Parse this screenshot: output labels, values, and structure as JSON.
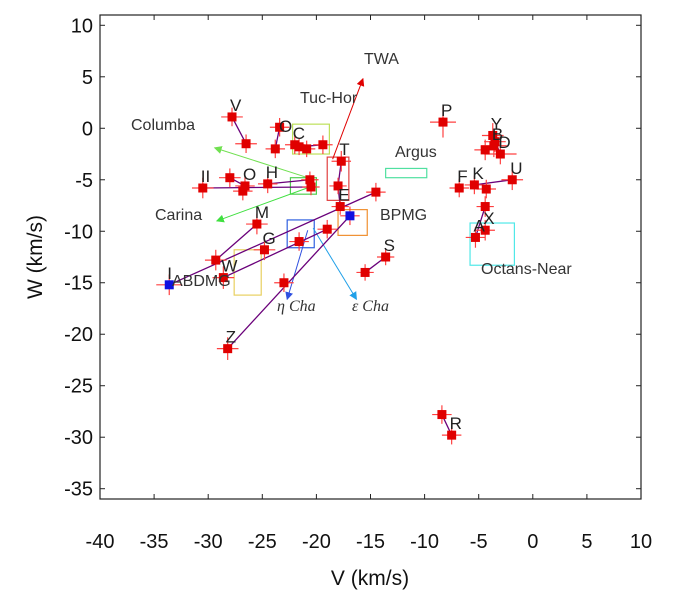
{
  "chart_data": {
    "type": "scatter",
    "xlabel": "V (km/s)",
    "ylabel": "W (km/s)",
    "xlim": [
      -40,
      10
    ],
    "ylim": [
      -36,
      11
    ],
    "xticks": [
      -40,
      -35,
      -30,
      -25,
      -20,
      -15,
      -10,
      -5,
      0,
      5,
      10
    ],
    "yticks": [
      -35,
      -30,
      -25,
      -20,
      -15,
      -10,
      -5,
      0,
      5,
      10
    ],
    "grid": false,
    "colors": {
      "star": "#e00000",
      "errorbar": "#ff4040",
      "mean": "#1010e0",
      "track": "#6a007a"
    },
    "stars": [
      {
        "label": "V",
        "x": -27.8,
        "y": 1.1,
        "xerr": 1.0,
        "yerr": 0.9
      },
      {
        "label": "",
        "x": -26.5,
        "y": -1.5,
        "xerr": 1.0,
        "yerr": 0.9
      },
      {
        "label": "",
        "x": -23.4,
        "y": 0.1,
        "xerr": 0.9,
        "yerr": 0.9
      },
      {
        "label": "",
        "x": -23.8,
        "y": -2.0,
        "xerr": 0.9,
        "yerr": 0.9
      },
      {
        "label": "C",
        "x": -22.0,
        "y": -1.6,
        "xerr": 0.9,
        "yerr": 0.9
      },
      {
        "label": "",
        "x": -21.6,
        "y": -1.8,
        "xerr": 0.8,
        "yerr": 0.8
      },
      {
        "label": "",
        "x": -20.9,
        "y": -2.0,
        "xerr": 0.8,
        "yerr": 0.8
      },
      {
        "label": "",
        "x": -19.4,
        "y": -1.6,
        "xerr": 0.9,
        "yerr": 0.9
      },
      {
        "label": "T",
        "x": -17.7,
        "y": -3.2,
        "xerr": 0.9,
        "yerr": 1.0
      },
      {
        "label": "",
        "x": -18.0,
        "y": -5.6,
        "xerr": 0.8,
        "yerr": 0.8
      },
      {
        "label": "E",
        "x": -17.8,
        "y": -7.6,
        "xerr": 0.8,
        "yerr": 0.8
      },
      {
        "label": "O",
        "x": -26.6,
        "y": -5.6,
        "xerr": 0.9,
        "yerr": 0.9
      },
      {
        "label": "",
        "x": -28.0,
        "y": -4.8,
        "xerr": 1.0,
        "yerr": 0.9
      },
      {
        "label": "",
        "x": -26.8,
        "y": -6.1,
        "xerr": 0.9,
        "yerr": 0.9
      },
      {
        "label": "H",
        "x": -24.5,
        "y": -5.4,
        "xerr": 0.9,
        "yerr": 0.9
      },
      {
        "label": "",
        "x": -20.6,
        "y": -5.0,
        "xerr": 0.8,
        "yerr": 0.8
      },
      {
        "label": "",
        "x": -20.5,
        "y": -5.7,
        "xerr": 0.8,
        "yerr": 0.8
      },
      {
        "label": "",
        "x": -14.5,
        "y": -6.2,
        "xerr": 0.9,
        "yerr": 0.9
      },
      {
        "label": "II",
        "x": -30.5,
        "y": -5.8,
        "xerr": 1.0,
        "yerr": 1.0
      },
      {
        "label": "M",
        "x": -25.5,
        "y": -9.3,
        "xerr": 1.0,
        "yerr": 1.0
      },
      {
        "label": "G",
        "x": -24.8,
        "y": -11.8,
        "xerr": 1.0,
        "yerr": 1.0
      },
      {
        "label": "",
        "x": -21.6,
        "y": -11.0,
        "xerr": 0.9,
        "yerr": 0.9
      },
      {
        "label": "",
        "x": -19.0,
        "y": -9.8,
        "xerr": 0.9,
        "yerr": 0.9
      },
      {
        "label": "",
        "x": -29.3,
        "y": -12.8,
        "xerr": 1.0,
        "yerr": 1.0
      },
      {
        "label": "W",
        "x": -28.6,
        "y": -14.5,
        "xerr": 1.0,
        "yerr": 1.1
      },
      {
        "label": "",
        "x": -23.0,
        "y": -15.0,
        "xerr": 0.9,
        "yerr": 0.9
      },
      {
        "label": "S",
        "x": -13.6,
        "y": -12.5,
        "xerr": 0.8,
        "yerr": 0.8
      },
      {
        "label": "",
        "x": -15.5,
        "y": -14.0,
        "xerr": 0.8,
        "yerr": 0.8
      },
      {
        "label": "Z",
        "x": -28.2,
        "y": -21.4,
        "xerr": 1.0,
        "yerr": 1.1
      },
      {
        "label": "P",
        "x": -8.3,
        "y": 0.6,
        "xerr": 1.2,
        "yerr": 1.5
      },
      {
        "label": "Y",
        "x": -3.7,
        "y": -0.7,
        "xerr": 1.0,
        "yerr": 1.2
      },
      {
        "label": "",
        "x": -3.5,
        "y": -1.3,
        "xerr": 1.0,
        "yerr": 1.0
      },
      {
        "label": "B",
        "x": -3.6,
        "y": -1.7,
        "xerr": 1.2,
        "yerr": 1.1
      },
      {
        "label": "",
        "x": -4.4,
        "y": -2.1,
        "xerr": 1.0,
        "yerr": 1.0
      },
      {
        "label": "D",
        "x": -3.0,
        "y": -2.5,
        "xerr": 1.5,
        "yerr": 1.0
      },
      {
        "label": "F",
        "x": -6.8,
        "y": -5.8,
        "xerr": 0.9,
        "yerr": 0.9
      },
      {
        "label": "K",
        "x": -5.4,
        "y": -5.5,
        "xerr": 0.9,
        "yerr": 0.9
      },
      {
        "label": "",
        "x": -4.3,
        "y": -5.9,
        "xerr": 0.9,
        "yerr": 0.9
      },
      {
        "label": "U",
        "x": -1.9,
        "y": -5.0,
        "xerr": 1.0,
        "yerr": 1.0
      },
      {
        "label": "",
        "x": -4.4,
        "y": -7.6,
        "xerr": 0.8,
        "yerr": 1.0
      },
      {
        "label": "X",
        "x": -4.4,
        "y": -9.9,
        "xerr": 0.9,
        "yerr": 1.0
      },
      {
        "label": "A",
        "x": -5.3,
        "y": -10.6,
        "xerr": 0.9,
        "yerr": 1.0
      },
      {
        "label": "",
        "x": -8.4,
        "y": -27.8,
        "xerr": 0.9,
        "yerr": 0.9
      },
      {
        "label": "R",
        "x": -7.5,
        "y": -29.8,
        "xerr": 0.9,
        "yerr": 0.9
      }
    ],
    "group_means": [
      {
        "label": "I",
        "x": -33.6,
        "y": -15.2,
        "xerr": 1.2,
        "yerr": 1.0
      },
      {
        "label": "",
        "x": -16.9,
        "y": -8.5,
        "xerr": 0.9,
        "yerr": 0.9
      }
    ],
    "tracks": [
      {
        "from": [
          -27.8,
          1.1
        ],
        "to": [
          -26.5,
          -1.5
        ]
      },
      {
        "from": [
          -23.4,
          0.1
        ],
        "to": [
          -23.8,
          -2.0
        ]
      },
      {
        "from": [
          -21.6,
          -1.8
        ],
        "to": [
          -19.4,
          -1.6
        ]
      },
      {
        "from": [
          -17.7,
          -3.2
        ],
        "to": [
          -18.0,
          -5.6
        ]
      },
      {
        "from": [
          -18.0,
          -5.6
        ],
        "to": [
          -17.8,
          -7.6
        ]
      },
      {
        "from": [
          -26.8,
          -6.1
        ],
        "to": [
          -26.6,
          -5.6
        ]
      },
      {
        "from": [
          -24.5,
          -5.4
        ],
        "to": [
          -20.6,
          -5.0
        ]
      },
      {
        "from": [
          -28.0,
          -4.8
        ],
        "to": [
          -26.6,
          -5.6
        ]
      },
      {
        "from": [
          -30.5,
          -5.8
        ],
        "to": [
          -20.5,
          -5.7
        ]
      },
      {
        "from": [
          -33.6,
          -15.2
        ],
        "to": [
          -14.5,
          -6.2
        ]
      },
      {
        "from": [
          -29.3,
          -12.8
        ],
        "to": [
          -25.5,
          -9.3
        ]
      },
      {
        "from": [
          -28.6,
          -14.5
        ],
        "to": [
          -19.0,
          -9.8
        ]
      },
      {
        "from": [
          -28.2,
          -21.4
        ],
        "to": [
          -16.9,
          -8.5
        ]
      },
      {
        "from": [
          -15.5,
          -14.0
        ],
        "to": [
          -13.6,
          -12.5
        ]
      },
      {
        "from": [
          -3.5,
          -1.3
        ],
        "to": [
          -4.4,
          -2.1
        ]
      },
      {
        "from": [
          -3.0,
          -2.5
        ],
        "to": [
          -3.7,
          -0.7
        ]
      },
      {
        "from": [
          -5.4,
          -5.5
        ],
        "to": [
          -1.9,
          -5.0
        ]
      },
      {
        "from": [
          -4.4,
          -7.6
        ],
        "to": [
          -5.3,
          -10.6
        ]
      },
      {
        "from": [
          -8.4,
          -27.8
        ],
        "to": [
          -7.5,
          -29.8
        ]
      }
    ],
    "boxes": [
      {
        "name": "Tuc-Hor",
        "color": "#bde05a",
        "x0": -22.2,
        "x1": -18.8,
        "y0": -2.5,
        "y1": 0.4
      },
      {
        "name": "TWA",
        "color": "#e04040",
        "x0": -19.0,
        "x1": -17.0,
        "y0": -7.0,
        "y1": -2.8
      },
      {
        "name": "Argus",
        "color": "#50e0a0",
        "x0": -13.6,
        "x1": -9.8,
        "y0": -4.8,
        "y1": -3.9
      },
      {
        "name": "Carina",
        "color": "#50d050",
        "x0": -22.4,
        "x1": -20.0,
        "y0": -6.4,
        "y1": -4.8
      },
      {
        "name": "BPMG",
        "color": "#f09030",
        "x0": -18.0,
        "x1": -15.3,
        "y0": -10.4,
        "y1": -7.9
      },
      {
        "name": "Octans-Near",
        "color": "#50e8e8",
        "x0": -5.8,
        "x1": -1.7,
        "y0": -13.3,
        "y1": -9.2
      },
      {
        "name": "eta Cha box",
        "color": "#3060e0",
        "x0": -22.7,
        "x1": -20.2,
        "y0": -11.6,
        "y1": -8.9
      },
      {
        "name": "ABDMG",
        "color": "#e8d060",
        "x0": -27.6,
        "x1": -25.1,
        "y0": -16.2,
        "y1": -11.8
      }
    ],
    "labels": {
      "twa": "TWA",
      "tuchor": "Tuc-Hor",
      "columba": "Columba",
      "argus": "Argus",
      "carina": "Carina",
      "bpmg": "BPMG",
      "octans": "Octans-Near",
      "abdmg": "ABDMG",
      "etacha": "η Cha",
      "epscha": "ε Cha",
      "oc": "O"
    },
    "arrows": [
      {
        "name": "twa-arrow",
        "color": "#e00000",
        "from": [
          -18.5,
          -3.0
        ],
        "to": [
          -15.7,
          4.8
        ]
      },
      {
        "name": "columba-arrow",
        "color": "#70e050",
        "from": [
          -20.8,
          -4.8
        ],
        "to": [
          -29.4,
          -1.9
        ]
      },
      {
        "name": "carina-arrow",
        "color": "#40e040",
        "from": [
          -20.6,
          -5.7
        ],
        "to": [
          -29.2,
          -9.0
        ]
      },
      {
        "name": "etacha-arrow",
        "color": "#3050e0",
        "from": [
          -20.8,
          -9.9
        ],
        "to": [
          -22.7,
          -16.6
        ]
      },
      {
        "name": "epscha-arrow",
        "color": "#20a0e8",
        "from": [
          -20.3,
          -9.7
        ],
        "to": [
          -16.3,
          -16.6
        ]
      }
    ]
  }
}
